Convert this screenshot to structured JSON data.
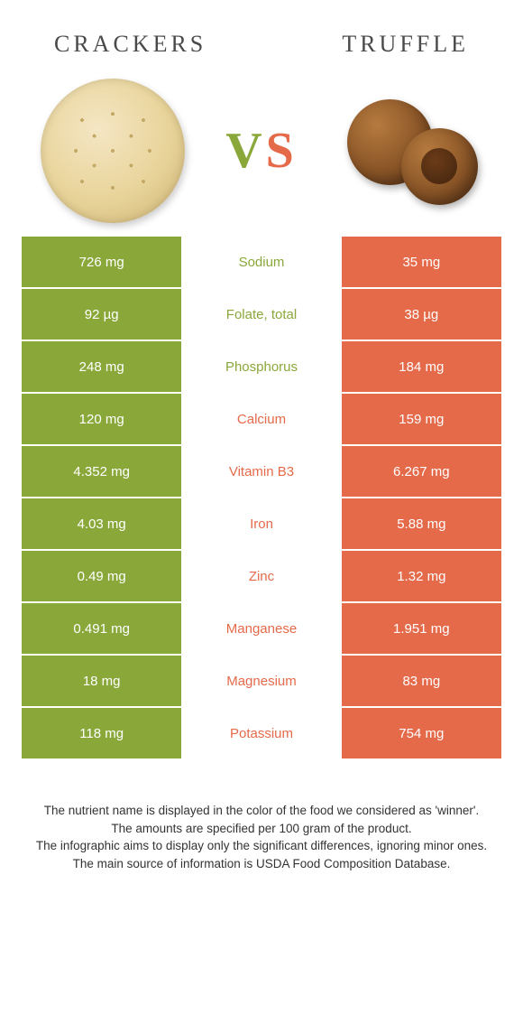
{
  "header": {
    "left_title": "Crackers",
    "right_title": "Truffle",
    "vs_v": "V",
    "vs_s": "S"
  },
  "colors": {
    "left_bg": "#8aa83a",
    "right_bg": "#e56a4a",
    "left_text": "#ffffff",
    "right_text": "#ffffff"
  },
  "rows": [
    {
      "nutrient": "Sodium",
      "left": "726 mg",
      "right": "35 mg",
      "winner": "left"
    },
    {
      "nutrient": "Folate, total",
      "left": "92 µg",
      "right": "38 µg",
      "winner": "left"
    },
    {
      "nutrient": "Phosphorus",
      "left": "248 mg",
      "right": "184 mg",
      "winner": "left"
    },
    {
      "nutrient": "Calcium",
      "left": "120 mg",
      "right": "159 mg",
      "winner": "right"
    },
    {
      "nutrient": "Vitamin B3",
      "left": "4.352 mg",
      "right": "6.267 mg",
      "winner": "right"
    },
    {
      "nutrient": "Iron",
      "left": "4.03 mg",
      "right": "5.88 mg",
      "winner": "right"
    },
    {
      "nutrient": "Zinc",
      "left": "0.49 mg",
      "right": "1.32 mg",
      "winner": "right"
    },
    {
      "nutrient": "Manganese",
      "left": "0.491 mg",
      "right": "1.951 mg",
      "winner": "right"
    },
    {
      "nutrient": "Magnesium",
      "left": "18 mg",
      "right": "83 mg",
      "winner": "right"
    },
    {
      "nutrient": "Potassium",
      "left": "118 mg",
      "right": "754 mg",
      "winner": "right"
    }
  ],
  "footnotes": [
    "The nutrient name is displayed in the color of the food we considered as 'winner'.",
    "The amounts are specified per 100 gram of the product.",
    "The infographic aims to display only the significant differences, ignoring minor ones.",
    "The main source of information is USDA Food Composition Database."
  ]
}
